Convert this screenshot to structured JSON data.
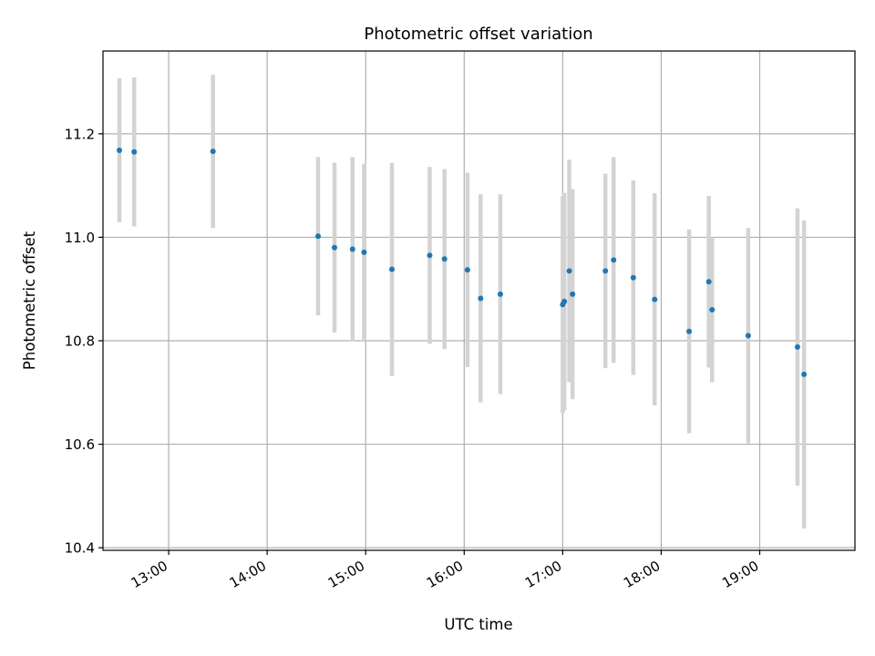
{
  "chart_data": {
    "type": "scatter",
    "title": "Photometric offset variation",
    "xlabel": "UTC time",
    "ylabel": "Photometric offset",
    "x_tick_labels": [
      "13:00",
      "14:00",
      "15:00",
      "16:00",
      "17:00",
      "18:00",
      "19:00"
    ],
    "y_tick_labels": [
      "10.4",
      "10.6",
      "10.8",
      "11.0",
      "11.2"
    ],
    "xlim": [
      "12:20",
      "19:58"
    ],
    "ylim": [
      10.395,
      11.36
    ],
    "grid": true,
    "colors": {
      "point": "#1f77b4",
      "errorbar": "#d3d3d3",
      "grid": "#b0b0b0"
    },
    "series": [
      {
        "points": [
          {
            "x": "12:30",
            "y": 11.168,
            "err": 0.139
          },
          {
            "x": "12:39",
            "y": 11.165,
            "err": 0.144
          },
          {
            "x": "13:27",
            "y": 11.166,
            "err": 0.148
          },
          {
            "x": "14:31",
            "y": 11.002,
            "err": 0.153
          },
          {
            "x": "14:41",
            "y": 10.98,
            "err": 0.164
          },
          {
            "x": "14:52",
            "y": 10.977,
            "err": 0.178
          },
          {
            "x": "14:59",
            "y": 10.971,
            "err": 0.171
          },
          {
            "x": "15:16",
            "y": 10.938,
            "err": 0.206
          },
          {
            "x": "15:39",
            "y": 10.965,
            "err": 0.171
          },
          {
            "x": "15:48",
            "y": 10.958,
            "err": 0.174
          },
          {
            "x": "16:02",
            "y": 10.937,
            "err": 0.188
          },
          {
            "x": "16:10",
            "y": 10.882,
            "err": 0.201
          },
          {
            "x": "16:22",
            "y": 10.89,
            "err": 0.193
          },
          {
            "x": "17:00",
            "y": 10.87,
            "err": 0.21
          },
          {
            "x": "17:01",
            "y": 10.876,
            "err": 0.21
          },
          {
            "x": "17:04",
            "y": 10.935,
            "err": 0.215
          },
          {
            "x": "17:06",
            "y": 10.89,
            "err": 0.203
          },
          {
            "x": "17:26",
            "y": 10.935,
            "err": 0.188
          },
          {
            "x": "17:31",
            "y": 10.956,
            "err": 0.199
          },
          {
            "x": "17:43",
            "y": 10.922,
            "err": 0.188
          },
          {
            "x": "17:56",
            "y": 10.88,
            "err": 0.205
          },
          {
            "x": "18:17",
            "y": 10.818,
            "err": 0.197
          },
          {
            "x": "18:29",
            "y": 10.914,
            "err": 0.166
          },
          {
            "x": "18:31",
            "y": 10.86,
            "err": 0.14
          },
          {
            "x": "18:53",
            "y": 10.81,
            "err": 0.208
          },
          {
            "x": "19:23",
            "y": 10.788,
            "err": 0.268
          },
          {
            "x": "19:27",
            "y": 10.735,
            "err": 0.298
          }
        ]
      }
    ]
  }
}
